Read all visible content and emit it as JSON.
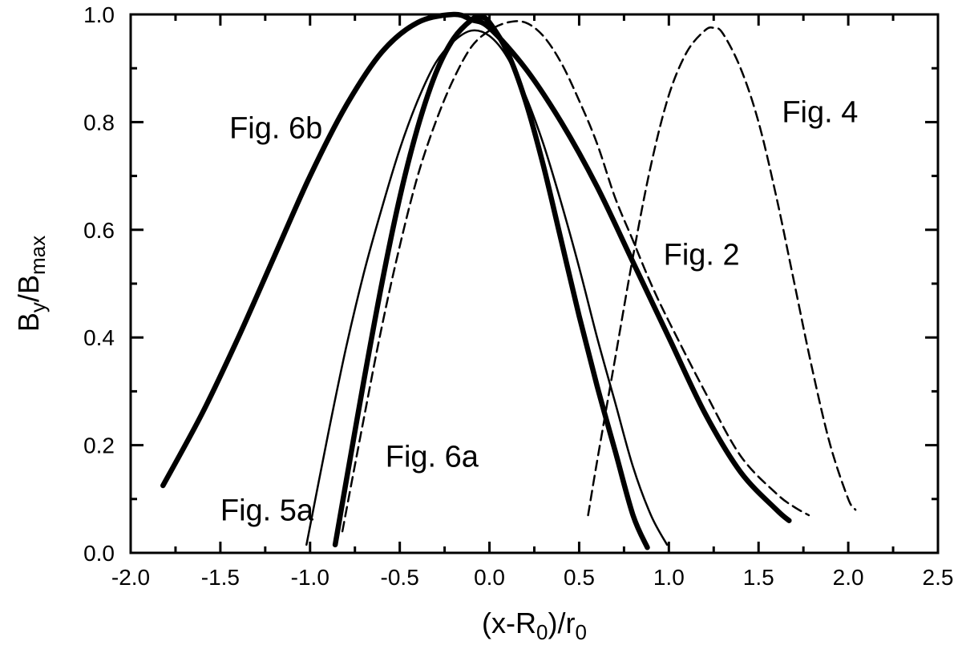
{
  "chart_data": {
    "type": "line",
    "xlabel_parts": [
      "(x-R",
      "0",
      ")/r",
      "0"
    ],
    "ylabel_parts": [
      "B",
      "y",
      "/B",
      "max"
    ],
    "xlim": [
      -2.0,
      2.5
    ],
    "ylim": [
      0.0,
      1.0
    ],
    "xticks": [
      -2.0,
      -1.5,
      -1.0,
      -0.5,
      0.0,
      0.5,
      1.0,
      1.5,
      2.0,
      2.5
    ],
    "xtick_labels": [
      "-2.0",
      "-1.5",
      "-1.0",
      "-0.5",
      "0.0",
      "0.5",
      "1.0",
      "1.5",
      "2.0",
      "2.5"
    ],
    "yticks": [
      0.0,
      0.2,
      0.4,
      0.6,
      0.8,
      1.0
    ],
    "ytick_labels": [
      "0.0",
      "0.2",
      "0.4",
      "0.6",
      "0.8",
      "1.0"
    ],
    "grid": false,
    "series": [
      {
        "style": "thick-solid",
        "x": [
          -1.82,
          -1.6,
          -1.4,
          -1.2,
          -1.0,
          -0.8,
          -0.6,
          -0.4,
          -0.2,
          -0.1,
          0.0,
          0.2,
          0.4,
          0.6,
          0.8,
          1.0,
          1.2,
          1.4,
          1.6,
          1.67
        ],
        "y": [
          0.125,
          0.26,
          0.4,
          0.55,
          0.7,
          0.83,
          0.93,
          0.985,
          1.0,
          0.99,
          0.975,
          0.9,
          0.8,
          0.68,
          0.54,
          0.4,
          0.26,
          0.15,
          0.08,
          0.06
        ]
      },
      {
        "style": "thick-solid",
        "x": [
          -0.86,
          -0.8,
          -0.7,
          -0.6,
          -0.5,
          -0.4,
          -0.3,
          -0.2,
          -0.1,
          -0.05,
          0.0,
          0.1,
          0.2,
          0.3,
          0.4,
          0.5,
          0.6,
          0.7,
          0.8,
          0.88
        ],
        "y": [
          0.015,
          0.13,
          0.32,
          0.5,
          0.66,
          0.79,
          0.89,
          0.955,
          0.99,
          0.995,
          0.985,
          0.93,
          0.84,
          0.72,
          0.58,
          0.44,
          0.31,
          0.19,
          0.07,
          0.01
        ]
      },
      {
        "style": "thin-solid",
        "x": [
          -1.02,
          -0.9,
          -0.8,
          -0.7,
          -0.6,
          -0.5,
          -0.4,
          -0.3,
          -0.2,
          -0.1,
          0.0,
          0.1,
          0.2,
          0.3,
          0.4,
          0.5,
          0.6,
          0.7,
          0.8,
          0.9,
          0.99
        ],
        "y": [
          0.015,
          0.22,
          0.38,
          0.52,
          0.64,
          0.75,
          0.84,
          0.91,
          0.95,
          0.97,
          0.96,
          0.92,
          0.85,
          0.76,
          0.65,
          0.53,
          0.4,
          0.28,
          0.16,
          0.07,
          0.015
        ]
      },
      {
        "style": "dashed",
        "x": [
          -0.82,
          -0.7,
          -0.6,
          -0.5,
          -0.4,
          -0.3,
          -0.2,
          -0.1,
          0.0,
          0.1,
          0.2,
          0.3,
          0.4,
          0.5,
          0.6,
          0.7,
          0.8,
          0.9,
          1.0,
          1.2,
          1.4,
          1.6,
          1.7,
          1.78
        ],
        "y": [
          0.04,
          0.25,
          0.42,
          0.57,
          0.7,
          0.8,
          0.88,
          0.94,
          0.97,
          0.985,
          0.985,
          0.96,
          0.91,
          0.84,
          0.76,
          0.66,
          0.58,
          0.5,
          0.43,
          0.3,
          0.18,
          0.11,
          0.085,
          0.07
        ]
      },
      {
        "style": "dashed",
        "x": [
          0.55,
          0.6,
          0.7,
          0.8,
          0.9,
          1.0,
          1.1,
          1.2,
          1.25,
          1.3,
          1.4,
          1.5,
          1.6,
          1.7,
          1.8,
          1.9,
          2.0,
          2.04
        ],
        "y": [
          0.07,
          0.17,
          0.36,
          0.55,
          0.72,
          0.85,
          0.93,
          0.97,
          0.975,
          0.965,
          0.9,
          0.8,
          0.66,
          0.5,
          0.34,
          0.2,
          0.1,
          0.08
        ]
      }
    ],
    "annotations": [
      {
        "text": "Fig. 6b",
        "x": -1.45,
        "y": 0.77
      },
      {
        "text": "Fig. 4",
        "x": 1.63,
        "y": 0.8
      },
      {
        "text": "Fig. 2",
        "x": 0.97,
        "y": 0.535
      },
      {
        "text": "Fig. 6a",
        "x": -0.58,
        "y": 0.16
      },
      {
        "text": "Fig. 5a",
        "x": -1.5,
        "y": 0.06
      }
    ]
  }
}
